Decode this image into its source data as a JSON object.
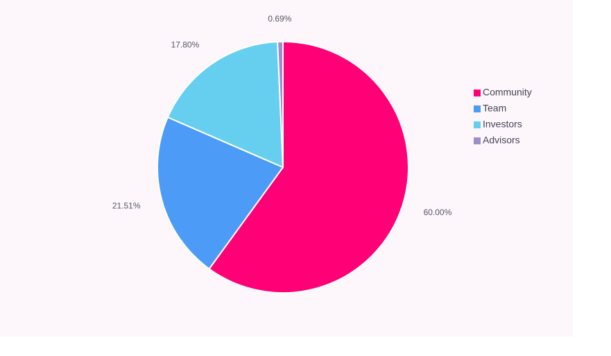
{
  "chart_data": {
    "type": "pie",
    "categories": [
      "Community",
      "Team",
      "Investors",
      "Advisors"
    ],
    "values": [
      60,
      21.51,
      17.8,
      0.69
    ],
    "value_labels": [
      "60.00%",
      "21.51%",
      "17.80%",
      "0.69%"
    ],
    "colors": [
      "#ff0077",
      "#4c9cf7",
      "#66cff0",
      "#9b8ec9"
    ],
    "legend": "right"
  }
}
